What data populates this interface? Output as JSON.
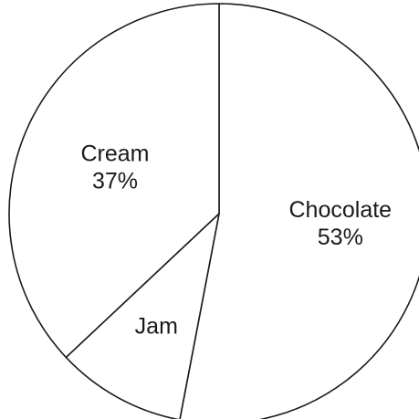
{
  "chart_data": {
    "type": "pie",
    "start_angle_deg": 0,
    "direction": "clockwise",
    "slices": [
      {
        "label": "Chocolate",
        "value": 53,
        "value_label": "53%"
      },
      {
        "label": "Jam",
        "value": 10,
        "value_label": ""
      },
      {
        "label": "Cream",
        "value": 37,
        "value_label": "37%"
      }
    ],
    "fill_color": "#ffffff",
    "stroke_color": "#1a1a1a",
    "legend": "none"
  }
}
